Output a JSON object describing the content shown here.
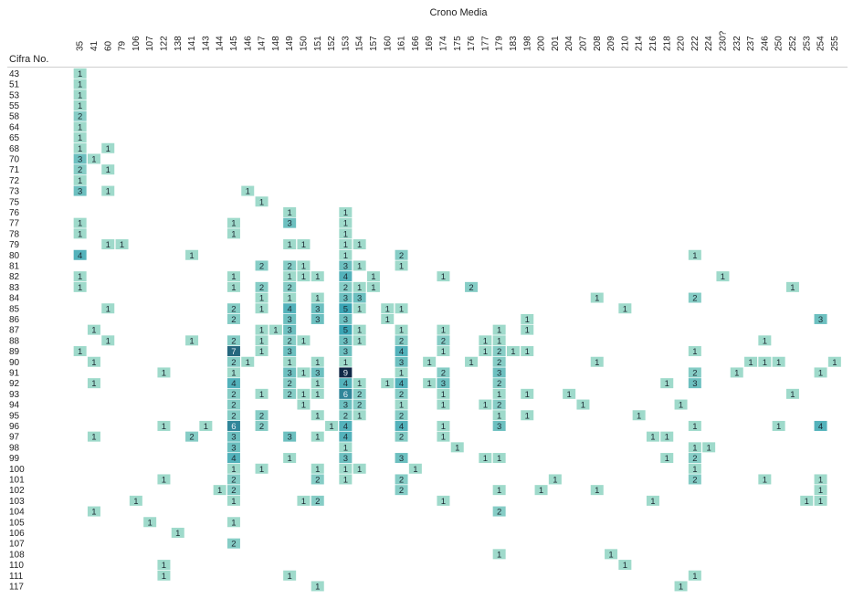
{
  "chart_data": {
    "type": "heatmap",
    "column_title": "Crono Media",
    "row_title": "Cifra No.",
    "columns": [
      "35",
      "41",
      "60",
      "79",
      "106",
      "107",
      "122",
      "138",
      "141",
      "143",
      "144",
      "145",
      "146",
      "147",
      "148",
      "149",
      "150",
      "151",
      "152",
      "153",
      "154",
      "157",
      "160",
      "161",
      "166",
      "169",
      "174",
      "175",
      "176",
      "177",
      "179",
      "183",
      "198",
      "200",
      "201",
      "204",
      "207",
      "208",
      "209",
      "210",
      "214",
      "216",
      "218",
      "220",
      "222",
      "224",
      "230?",
      "232",
      "237",
      "246",
      "250",
      "252",
      "253",
      "254",
      "255"
    ],
    "rows": [
      "43",
      "51",
      "53",
      "55",
      "58",
      "64",
      "65",
      "68",
      "70",
      "71",
      "72",
      "73",
      "75",
      "76",
      "77",
      "78",
      "79",
      "80",
      "81",
      "82",
      "83",
      "84",
      "85",
      "86",
      "87",
      "88",
      "89",
      "90",
      "91",
      "92",
      "93",
      "94",
      "95",
      "96",
      "97",
      "98",
      "99",
      "100",
      "101",
      "102",
      "103",
      "104",
      "105",
      "106",
      "107",
      "108",
      "110",
      "111",
      "117"
    ],
    "cells": [
      [
        "43",
        "35",
        1
      ],
      [
        "51",
        "35",
        1
      ],
      [
        "53",
        "35",
        1
      ],
      [
        "55",
        "35",
        1
      ],
      [
        "58",
        "35",
        2
      ],
      [
        "64",
        "35",
        1
      ],
      [
        "65",
        "35",
        1
      ],
      [
        "68",
        "35",
        1
      ],
      [
        "68",
        "60",
        1
      ],
      [
        "70",
        "35",
        3
      ],
      [
        "70",
        "41",
        1
      ],
      [
        "71",
        "35",
        2
      ],
      [
        "71",
        "60",
        1
      ],
      [
        "72",
        "35",
        1
      ],
      [
        "73",
        "35",
        3
      ],
      [
        "73",
        "60",
        1
      ],
      [
        "73",
        "146",
        1
      ],
      [
        "75",
        "147",
        1
      ],
      [
        "76",
        "149",
        1
      ],
      [
        "76",
        "153",
        1
      ],
      [
        "77",
        "35",
        1
      ],
      [
        "77",
        "145",
        1
      ],
      [
        "77",
        "149",
        3
      ],
      [
        "77",
        "153",
        1
      ],
      [
        "78",
        "35",
        1
      ],
      [
        "78",
        "145",
        1
      ],
      [
        "78",
        "153",
        1
      ],
      [
        "79",
        "60",
        1
      ],
      [
        "79",
        "79",
        1
      ],
      [
        "79",
        "149",
        1
      ],
      [
        "79",
        "150",
        1
      ],
      [
        "79",
        "153",
        1
      ],
      [
        "79",
        "154",
        1
      ],
      [
        "80",
        "35",
        4
      ],
      [
        "80",
        "141",
        1
      ],
      [
        "80",
        "153",
        1
      ],
      [
        "80",
        "161",
        2
      ],
      [
        "80",
        "222",
        1
      ],
      [
        "81",
        "147",
        2
      ],
      [
        "81",
        "149",
        2
      ],
      [
        "81",
        "150",
        1
      ],
      [
        "81",
        "153",
        3
      ],
      [
        "81",
        "154",
        1
      ],
      [
        "81",
        "161",
        1
      ],
      [
        "82",
        "35",
        1
      ],
      [
        "82",
        "145",
        1
      ],
      [
        "82",
        "149",
        1
      ],
      [
        "82",
        "150",
        1
      ],
      [
        "82",
        "151",
        1
      ],
      [
        "82",
        "153",
        4
      ],
      [
        "82",
        "157",
        1
      ],
      [
        "82",
        "174",
        1
      ],
      [
        "82",
        "230?",
        1
      ],
      [
        "83",
        "35",
        1
      ],
      [
        "83",
        "145",
        1
      ],
      [
        "83",
        "147",
        2
      ],
      [
        "83",
        "149",
        2
      ],
      [
        "83",
        "153",
        2
      ],
      [
        "83",
        "154",
        1
      ],
      [
        "83",
        "157",
        1
      ],
      [
        "83",
        "176",
        2
      ],
      [
        "83",
        "252",
        1
      ],
      [
        "84",
        "147",
        1
      ],
      [
        "84",
        "149",
        1
      ],
      [
        "84",
        "151",
        1
      ],
      [
        "84",
        "153",
        3
      ],
      [
        "84",
        "154",
        3
      ],
      [
        "84",
        "208",
        1
      ],
      [
        "84",
        "222",
        2
      ],
      [
        "85",
        "60",
        1
      ],
      [
        "85",
        "145",
        2
      ],
      [
        "85",
        "147",
        1
      ],
      [
        "85",
        "149",
        4
      ],
      [
        "85",
        "151",
        3
      ],
      [
        "85",
        "153",
        5
      ],
      [
        "85",
        "154",
        1
      ],
      [
        "85",
        "160",
        1
      ],
      [
        "85",
        "161",
        1
      ],
      [
        "85",
        "210",
        1
      ],
      [
        "86",
        "145",
        2
      ],
      [
        "86",
        "149",
        3
      ],
      [
        "86",
        "151",
        3
      ],
      [
        "86",
        "153",
        3
      ],
      [
        "86",
        "160",
        1
      ],
      [
        "86",
        "198",
        1
      ],
      [
        "86",
        "254",
        3
      ],
      [
        "87",
        "41",
        1
      ],
      [
        "87",
        "147",
        1
      ],
      [
        "87",
        "148",
        1
      ],
      [
        "87",
        "149",
        3
      ],
      [
        "87",
        "153",
        5
      ],
      [
        "87",
        "154",
        1
      ],
      [
        "87",
        "161",
        1
      ],
      [
        "87",
        "174",
        1
      ],
      [
        "87",
        "179",
        1
      ],
      [
        "87",
        "198",
        1
      ],
      [
        "88",
        "60",
        1
      ],
      [
        "88",
        "141",
        1
      ],
      [
        "88",
        "145",
        2
      ],
      [
        "88",
        "147",
        1
      ],
      [
        "88",
        "149",
        2
      ],
      [
        "88",
        "150",
        1
      ],
      [
        "88",
        "153",
        3
      ],
      [
        "88",
        "154",
        1
      ],
      [
        "88",
        "161",
        2
      ],
      [
        "88",
        "174",
        2
      ],
      [
        "88",
        "177",
        1
      ],
      [
        "88",
        "179",
        1
      ],
      [
        "88",
        "246",
        1
      ],
      [
        "89",
        "35",
        1
      ],
      [
        "89",
        "145",
        7
      ],
      [
        "89",
        "147",
        1
      ],
      [
        "89",
        "149",
        3
      ],
      [
        "89",
        "153",
        3
      ],
      [
        "89",
        "161",
        4
      ],
      [
        "89",
        "174",
        1
      ],
      [
        "89",
        "177",
        1
      ],
      [
        "89",
        "179",
        2
      ],
      [
        "89",
        "183",
        1
      ],
      [
        "89",
        "198",
        1
      ],
      [
        "89",
        "222",
        1
      ],
      [
        "90",
        "41",
        1
      ],
      [
        "90",
        "145",
        2
      ],
      [
        "90",
        "146",
        1
      ],
      [
        "90",
        "149",
        1
      ],
      [
        "90",
        "151",
        1
      ],
      [
        "90",
        "153",
        1
      ],
      [
        "90",
        "161",
        3
      ],
      [
        "90",
        "169",
        1
      ],
      [
        "90",
        "176",
        1
      ],
      [
        "90",
        "179",
        2
      ],
      [
        "90",
        "208",
        1
      ],
      [
        "90",
        "237",
        1
      ],
      [
        "90",
        "246",
        1
      ],
      [
        "90",
        "250",
        1
      ],
      [
        "90",
        "255",
        1
      ],
      [
        "91",
        "122",
        1
      ],
      [
        "91",
        "145",
        1
      ],
      [
        "91",
        "149",
        3
      ],
      [
        "91",
        "150",
        1
      ],
      [
        "91",
        "151",
        3
      ],
      [
        "91",
        "153",
        9
      ],
      [
        "91",
        "161",
        1
      ],
      [
        "91",
        "174",
        2
      ],
      [
        "91",
        "179",
        3
      ],
      [
        "91",
        "222",
        2
      ],
      [
        "91",
        "232",
        1
      ],
      [
        "91",
        "254",
        1
      ],
      [
        "92",
        "41",
        1
      ],
      [
        "92",
        "145",
        4
      ],
      [
        "92",
        "149",
        2
      ],
      [
        "92",
        "151",
        1
      ],
      [
        "92",
        "153",
        4
      ],
      [
        "92",
        "154",
        1
      ],
      [
        "92",
        "160",
        1
      ],
      [
        "92",
        "161",
        4
      ],
      [
        "92",
        "169",
        1
      ],
      [
        "92",
        "174",
        3
      ],
      [
        "92",
        "179",
        2
      ],
      [
        "92",
        "218",
        1
      ],
      [
        "92",
        "222",
        3
      ],
      [
        "93",
        "145",
        2
      ],
      [
        "93",
        "147",
        1
      ],
      [
        "93",
        "149",
        2
      ],
      [
        "93",
        "150",
        1
      ],
      [
        "93",
        "151",
        1
      ],
      [
        "93",
        "153",
        6
      ],
      [
        "93",
        "154",
        2
      ],
      [
        "93",
        "161",
        2
      ],
      [
        "93",
        "174",
        1
      ],
      [
        "93",
        "179",
        1
      ],
      [
        "93",
        "198",
        1
      ],
      [
        "93",
        "204",
        1
      ],
      [
        "93",
        "252",
        1
      ],
      [
        "94",
        "145",
        2
      ],
      [
        "94",
        "150",
        1
      ],
      [
        "94",
        "153",
        3
      ],
      [
        "94",
        "154",
        2
      ],
      [
        "94",
        "161",
        1
      ],
      [
        "94",
        "174",
        1
      ],
      [
        "94",
        "177",
        1
      ],
      [
        "94",
        "179",
        2
      ],
      [
        "94",
        "207",
        1
      ],
      [
        "94",
        "220",
        1
      ],
      [
        "95",
        "145",
        2
      ],
      [
        "95",
        "147",
        2
      ],
      [
        "95",
        "151",
        1
      ],
      [
        "95",
        "153",
        2
      ],
      [
        "95",
        "154",
        1
      ],
      [
        "95",
        "161",
        2
      ],
      [
        "95",
        "179",
        1
      ],
      [
        "95",
        "198",
        1
      ],
      [
        "95",
        "214",
        1
      ],
      [
        "96",
        "122",
        1
      ],
      [
        "96",
        "143",
        1
      ],
      [
        "96",
        "145",
        6
      ],
      [
        "96",
        "147",
        2
      ],
      [
        "96",
        "152",
        1
      ],
      [
        "96",
        "153",
        4
      ],
      [
        "96",
        "161",
        4
      ],
      [
        "96",
        "174",
        1
      ],
      [
        "96",
        "179",
        3
      ],
      [
        "96",
        "222",
        1
      ],
      [
        "96",
        "250",
        1
      ],
      [
        "96",
        "254",
        4
      ],
      [
        "97",
        "41",
        1
      ],
      [
        "97",
        "141",
        2
      ],
      [
        "97",
        "145",
        3
      ],
      [
        "97",
        "149",
        3
      ],
      [
        "97",
        "151",
        1
      ],
      [
        "97",
        "153",
        4
      ],
      [
        "97",
        "161",
        2
      ],
      [
        "97",
        "174",
        1
      ],
      [
        "97",
        "216",
        1
      ],
      [
        "97",
        "218",
        1
      ],
      [
        "98",
        "145",
        3
      ],
      [
        "98",
        "153",
        1
      ],
      [
        "98",
        "175",
        1
      ],
      [
        "98",
        "222",
        1
      ],
      [
        "98",
        "224",
        1
      ],
      [
        "99",
        "145",
        4
      ],
      [
        "99",
        "149",
        1
      ],
      [
        "99",
        "153",
        3
      ],
      [
        "99",
        "161",
        3
      ],
      [
        "99",
        "177",
        1
      ],
      [
        "99",
        "179",
        1
      ],
      [
        "99",
        "218",
        1
      ],
      [
        "99",
        "222",
        2
      ],
      [
        "100",
        "145",
        1
      ],
      [
        "100",
        "147",
        1
      ],
      [
        "100",
        "151",
        1
      ],
      [
        "100",
        "153",
        1
      ],
      [
        "100",
        "154",
        1
      ],
      [
        "100",
        "166",
        1
      ],
      [
        "100",
        "222",
        1
      ],
      [
        "101",
        "122",
        1
      ],
      [
        "101",
        "145",
        2
      ],
      [
        "101",
        "151",
        2
      ],
      [
        "101",
        "153",
        1
      ],
      [
        "101",
        "161",
        2
      ],
      [
        "101",
        "201",
        1
      ],
      [
        "101",
        "222",
        2
      ],
      [
        "101",
        "246",
        1
      ],
      [
        "101",
        "254",
        1
      ],
      [
        "102",
        "144",
        1
      ],
      [
        "102",
        "145",
        2
      ],
      [
        "102",
        "161",
        2
      ],
      [
        "102",
        "179",
        1
      ],
      [
        "102",
        "200",
        1
      ],
      [
        "102",
        "208",
        1
      ],
      [
        "102",
        "254",
        1
      ],
      [
        "103",
        "106",
        1
      ],
      [
        "103",
        "145",
        1
      ],
      [
        "103",
        "150",
        1
      ],
      [
        "103",
        "151",
        2
      ],
      [
        "103",
        "174",
        1
      ],
      [
        "103",
        "216",
        1
      ],
      [
        "103",
        "253",
        1
      ],
      [
        "103",
        "254",
        1
      ],
      [
        "104",
        "41",
        1
      ],
      [
        "104",
        "179",
        2
      ],
      [
        "105",
        "107",
        1
      ],
      [
        "105",
        "145",
        1
      ],
      [
        "106",
        "138",
        1
      ],
      [
        "107",
        "145",
        2
      ],
      [
        "108",
        "179",
        1
      ],
      [
        "108",
        "209",
        1
      ],
      [
        "110",
        "122",
        1
      ],
      [
        "110",
        "210",
        1
      ],
      [
        "111",
        "122",
        1
      ],
      [
        "111",
        "149",
        1
      ],
      [
        "111",
        "222",
        1
      ],
      [
        "117",
        "151",
        1
      ],
      [
        "117",
        "220",
        1
      ]
    ],
    "value_range": [
      1,
      9
    ],
    "colors": {
      "low": "#9fdacb",
      "mid": "#3aa5b5",
      "high": "#102847"
    }
  }
}
